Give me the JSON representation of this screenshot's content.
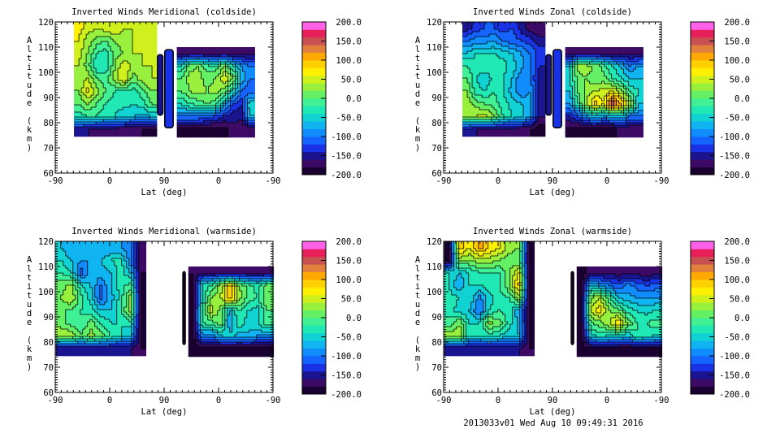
{
  "footer": "2013033v01 Wed Aug 10 09:49:31 2016",
  "colorbar": {
    "labels": [
      "200.0",
      "150.0",
      "100.0",
      "50.0",
      "0.0",
      "-50.0",
      "-100.0",
      "-150.0",
      "-200.0"
    ],
    "label_values": [
      200,
      150,
      100,
      50,
      0,
      -50,
      -100,
      -150,
      -200
    ],
    "range": [
      -200,
      200
    ],
    "colors": [
      "#1a0030",
      "#3c0a64",
      "#1a1490",
      "#1a32e6",
      "#1464ff",
      "#108cff",
      "#10b4f0",
      "#10d2d2",
      "#20e8b4",
      "#40f094",
      "#64f064",
      "#98f03c",
      "#d0f01c",
      "#fff000",
      "#ffd000",
      "#ffa800",
      "#e0803c",
      "#c85050",
      "#e8205a",
      "#ff60e8"
    ]
  },
  "chart_data": [
    {
      "type": "heatmap",
      "title": "Inverted Winds Meridional (coldside)",
      "xlabel": "Lat (deg)",
      "ylabel": "Altitude (km)",
      "xlim": [
        0,
        360
      ],
      "xtick_positions": [
        0,
        90,
        180,
        270,
        360
      ],
      "xtick_labels": [
        "-90",
        "0",
        "90",
        "0",
        "-90"
      ],
      "ylim": [
        60,
        120
      ],
      "ytick_labels": [
        "60",
        "70",
        "80",
        "90",
        "100",
        "110",
        "120"
      ],
      "blocks": [
        {
          "u": [
            31,
            166
          ],
          "alt": [
            75,
            120
          ],
          "values": [
            [
              70,
              50,
              40,
              50,
              60,
              40,
              40,
              40,
              40
            ],
            [
              60,
              30,
              10,
              0,
              20,
              30,
              40,
              40,
              40
            ],
            [
              50,
              20,
              -20,
              -30,
              10,
              20,
              40,
              40,
              40
            ],
            [
              40,
              10,
              -40,
              -40,
              20,
              60,
              30,
              40,
              40
            ],
            [
              30,
              40,
              0,
              -10,
              30,
              60,
              10,
              30,
              40
            ],
            [
              20,
              70,
              30,
              0,
              -20,
              -20,
              -30,
              -10,
              20
            ],
            [
              0,
              20,
              0,
              -20,
              -30,
              -30,
              -40,
              -30,
              0
            ],
            [
              -30,
              -20,
              -20,
              -40,
              -40,
              -60,
              -60,
              -70,
              -60
            ],
            [
              -150,
              -160,
              -170,
              -170,
              -170,
              -170,
              -180,
              -180,
              -190
            ]
          ]
        },
        {
          "u": [
            201,
            329
          ],
          "alt": [
            75,
            110
          ],
          "values": [
            [
              -170,
              -170,
              -170,
              -170,
              -170,
              -170,
              -170,
              -170,
              -170
            ],
            [
              -40,
              10,
              20,
              -10,
              -20,
              20,
              -40,
              -80,
              -100
            ],
            [
              0,
              30,
              30,
              10,
              20,
              60,
              20,
              -60,
              -100
            ],
            [
              0,
              20,
              30,
              20,
              30,
              10,
              -40,
              -100,
              -120
            ],
            [
              -40,
              -20,
              -10,
              0,
              -10,
              -60,
              -120,
              -140,
              -40
            ],
            [
              -100,
              -100,
              -100,
              -110,
              -120,
              -140,
              -150,
              -150,
              -60
            ],
            [
              -190,
              -190,
              -190,
              -190,
              -190,
              -190,
              -170,
              -180,
              -180
            ]
          ]
        }
      ],
      "strips": [
        {
          "u": [
            169,
            178
          ],
          "alt": [
            83,
            107
          ],
          "value": -150
        },
        {
          "u": [
            181,
            195
          ],
          "alt": [
            78,
            109
          ],
          "value": -140
        }
      ]
    },
    {
      "type": "heatmap",
      "title": "Inverted Winds Zonal (coldside)",
      "xlabel": "Lat (deg)",
      "ylabel": "Altitude (km)",
      "xlim": [
        0,
        360
      ],
      "xtick_positions": [
        0,
        90,
        180,
        270,
        360
      ],
      "xtick_labels": [
        "-90",
        "0",
        "90",
        "0",
        "-90"
      ],
      "ylim": [
        60,
        120
      ],
      "ytick_labels": [
        "60",
        "70",
        "80",
        "90",
        "100",
        "110",
        "120"
      ],
      "blocks": [
        {
          "u": [
            31,
            166
          ],
          "alt": [
            75,
            120
          ],
          "values": [
            [
              -150,
              -130,
              -120,
              -120,
              -130,
              -120,
              -150,
              -170,
              -180
            ],
            [
              -100,
              -90,
              -90,
              -80,
              -100,
              -110,
              -120,
              -130,
              -150
            ],
            [
              -60,
              -40,
              -40,
              -40,
              -50,
              -60,
              -80,
              -100,
              -130
            ],
            [
              -20,
              -30,
              -20,
              -20,
              -30,
              -50,
              -70,
              -100,
              -140
            ],
            [
              0,
              -40,
              -60,
              -30,
              -40,
              -60,
              -100,
              -100,
              -150
            ],
            [
              20,
              -30,
              -40,
              -20,
              -40,
              -70,
              -100,
              -80,
              -150
            ],
            [
              30,
              10,
              0,
              -10,
              -30,
              -50,
              -60,
              -70,
              -150
            ],
            [
              40,
              40,
              50,
              20,
              -20,
              -40,
              -50,
              -80,
              -160
            ],
            [
              -150,
              -160,
              -170,
              -170,
              -170,
              -170,
              -170,
              -180,
              -190
            ]
          ]
        },
        {
          "u": [
            201,
            329
          ],
          "alt": [
            75,
            110
          ],
          "values": [
            [
              -180,
              -170,
              -170,
              -170,
              -170,
              -170,
              -170,
              -170,
              -170
            ],
            [
              -60,
              30,
              30,
              20,
              -10,
              -40,
              -60,
              -100,
              -80
            ],
            [
              -40,
              10,
              20,
              0,
              10,
              -20,
              -40,
              -60,
              -60
            ],
            [
              -60,
              0,
              30,
              40,
              50,
              60,
              30,
              -20,
              -40
            ],
            [
              -80,
              -20,
              40,
              90,
              60,
              170,
              100,
              40,
              -60
            ],
            [
              -140,
              -120,
              -80,
              -60,
              -80,
              -70,
              -60,
              -100,
              -100
            ],
            [
              -190,
              -190,
              -190,
              -190,
              -190,
              -190,
              -170,
              -180,
              -180
            ]
          ]
        }
      ],
      "strips": [
        {
          "u": [
            169,
            178
          ],
          "alt": [
            83,
            107
          ],
          "value": -160
        },
        {
          "u": [
            181,
            195
          ],
          "alt": [
            78,
            109
          ],
          "value": -130
        }
      ]
    },
    {
      "type": "heatmap",
      "title": "Inverted Winds Meridional (warmside)",
      "xlabel": "Lat (deg)",
      "ylabel": "Altitude (km)",
      "xlim": [
        0,
        360
      ],
      "xtick_positions": [
        0,
        90,
        180,
        270,
        360
      ],
      "xtick_labels": [
        "-90",
        "0",
        "90",
        "0",
        "-90"
      ],
      "ylim": [
        60,
        120
      ],
      "ytick_labels": [
        "60",
        "70",
        "80",
        "90",
        "100",
        "110",
        "120"
      ],
      "blocks": [
        {
          "u": [
            1,
            150
          ],
          "alt": [
            75,
            120
          ],
          "values": [
            [
              -60,
              -80,
              -80,
              -80,
              -80,
              -80,
              -80,
              -100,
              -180
            ],
            [
              -40,
              -60,
              -80,
              -80,
              -60,
              -40,
              -30,
              -100,
              -180
            ],
            [
              -20,
              -40,
              -110,
              -70,
              -70,
              -60,
              -30,
              -60,
              -180
            ],
            [
              10,
              30,
              -40,
              -60,
              -100,
              -60,
              -30,
              -10,
              -190
            ],
            [
              20,
              40,
              -10,
              -50,
              -110,
              -70,
              -30,
              30,
              -190
            ],
            [
              0,
              0,
              -20,
              -30,
              -60,
              -60,
              -20,
              30,
              -190
            ],
            [
              10,
              -10,
              -20,
              10,
              -20,
              -40,
              -40,
              -30,
              -190
            ],
            [
              40,
              40,
              0,
              30,
              10,
              -20,
              -40,
              -60,
              -190
            ],
            [
              -160,
              -160,
              -160,
              -160,
              -160,
              -160,
              -160,
              -160,
              -180
            ]
          ]
        },
        {
          "u": [
            220,
            358
          ],
          "alt": [
            75,
            110
          ],
          "values": [
            [
              -180,
              -170,
              -170,
              -170,
              -170,
              -170,
              -170,
              -170,
              -170
            ],
            [
              -190,
              -30,
              -20,
              30,
              90,
              20,
              -10,
              -30,
              10
            ],
            [
              -190,
              -40,
              20,
              40,
              100,
              30,
              -10,
              -20,
              20
            ],
            [
              -190,
              -20,
              50,
              10,
              -70,
              -20,
              -40,
              -50,
              0
            ],
            [
              -190,
              -20,
              -10,
              10,
              -80,
              -20,
              -60,
              -40,
              -10
            ],
            [
              -190,
              -90,
              -90,
              -60,
              -50,
              -70,
              -60,
              -80,
              -80
            ],
            [
              -190,
              -190,
              -190,
              -190,
              -190,
              -190,
              -190,
              -190,
              -190
            ]
          ]
        }
      ],
      "strips": [
        {
          "u": [
            211,
            215
          ],
          "alt": [
            79,
            108
          ],
          "value": -200
        }
      ]
    },
    {
      "type": "heatmap",
      "title": "Inverted Winds Zonal (warmside)",
      "xlabel": "Lat (deg)",
      "ylabel": "Altitude (km)",
      "xlim": [
        0,
        360
      ],
      "xtick_positions": [
        0,
        90,
        180,
        270,
        360
      ],
      "xtick_labels": [
        "-90",
        "0",
        "90",
        "0",
        "-90"
      ],
      "ylim": [
        60,
        120
      ],
      "ytick_labels": [
        "60",
        "70",
        "80",
        "90",
        "100",
        "110",
        "120"
      ],
      "blocks": [
        {
          "u": [
            1,
            150
          ],
          "alt": [
            75,
            120
          ],
          "values": [
            [
              -190,
              90,
              60,
              110,
              80,
              60,
              30,
              20,
              -190
            ],
            [
              -190,
              30,
              20,
              30,
              30,
              20,
              10,
              0,
              -190
            ],
            [
              -40,
              -60,
              -40,
              -20,
              -20,
              -20,
              20,
              60,
              -190
            ],
            [
              -40,
              -80,
              -40,
              -40,
              -30,
              -20,
              20,
              90,
              -190
            ],
            [
              -30,
              -40,
              -40,
              -90,
              -50,
              -30,
              -20,
              30,
              -190
            ],
            [
              -30,
              -50,
              -60,
              -100,
              -40,
              -20,
              -30,
              -80,
              -190
            ],
            [
              -10,
              20,
              -40,
              -40,
              30,
              10,
              -30,
              -70,
              -190
            ],
            [
              30,
              40,
              -40,
              -40,
              -30,
              -40,
              -50,
              -60,
              -190
            ],
            [
              -160,
              -160,
              -160,
              -160,
              -160,
              -160,
              -160,
              -160,
              -180
            ]
          ]
        },
        {
          "u": [
            220,
            358
          ],
          "alt": [
            75,
            110
          ],
          "values": [
            [
              -190,
              -170,
              -170,
              -170,
              -170,
              -170,
              -170,
              -170,
              -170
            ],
            [
              -190,
              -60,
              -80,
              -100,
              -120,
              -90,
              -110,
              -120,
              -110
            ],
            [
              -190,
              20,
              40,
              -10,
              -60,
              -70,
              -80,
              -80,
              -80
            ],
            [
              -190,
              50,
              70,
              20,
              10,
              -30,
              -40,
              -50,
              -40
            ],
            [
              -190,
              0,
              10,
              40,
              80,
              20,
              -20,
              -20,
              -10
            ],
            [
              -190,
              -50,
              -30,
              -40,
              -40,
              -60,
              -20,
              -30,
              -40
            ],
            [
              -190,
              -190,
              -190,
              -190,
              -190,
              -190,
              -190,
              -190,
              -190
            ]
          ]
        }
      ],
      "strips": [
        {
          "u": [
            211,
            215
          ],
          "alt": [
            79,
            108
          ],
          "value": -200
        }
      ]
    }
  ]
}
